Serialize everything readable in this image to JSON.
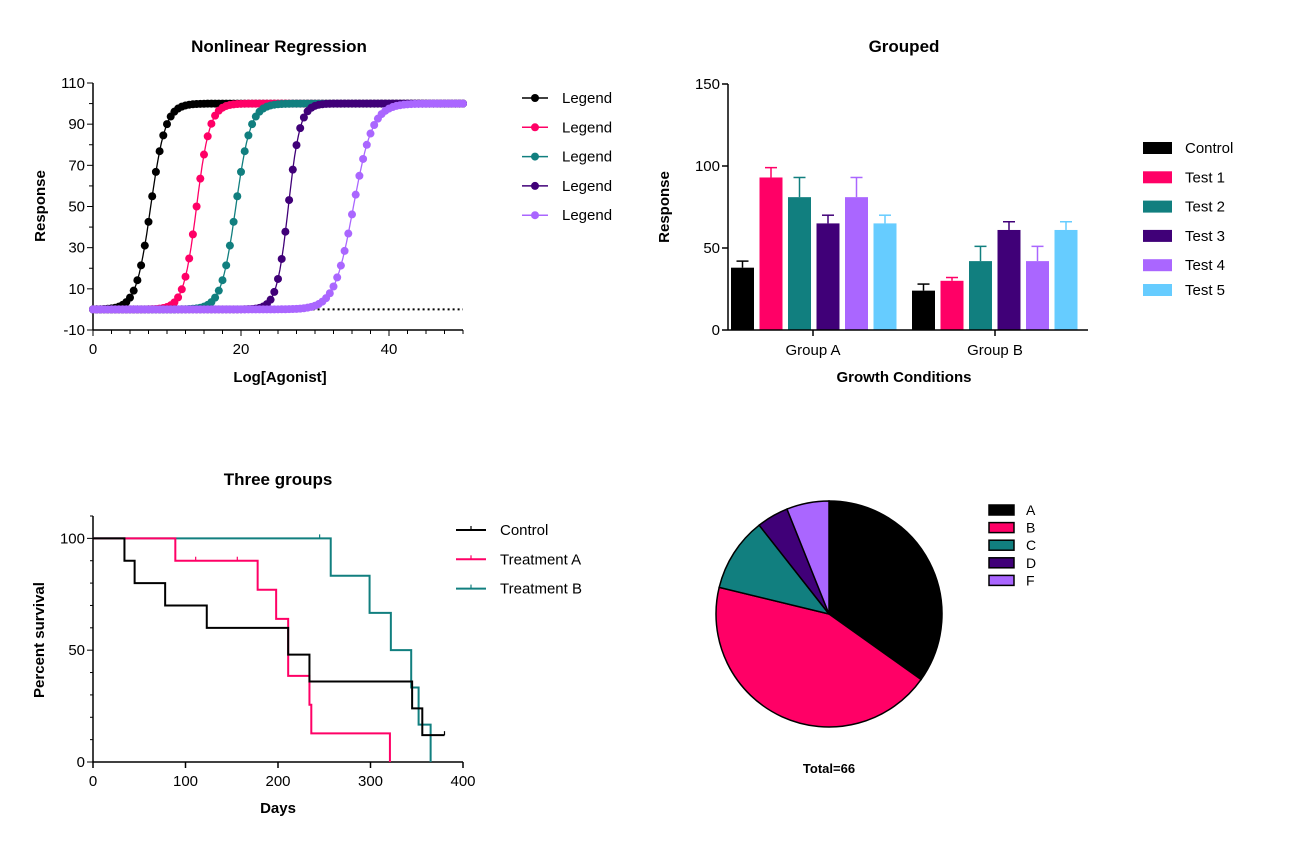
{
  "colors": {
    "black": "#000000",
    "pink": "#FF0066",
    "teal": "#117F7F",
    "purple": "#400078",
    "lavender": "#AA66FF",
    "lightblue": "#66CCFF"
  },
  "chart_data": [
    {
      "type": "scatter",
      "title": "Nonlinear Regression",
      "xlabel": "Log[Agonist]",
      "ylabel": "Response",
      "xlim": [
        0,
        50
      ],
      "ylim": [
        -10,
        110
      ],
      "xticks": [
        "0",
        "20",
        "40"
      ],
      "yticks": [
        "110",
        "90",
        "70",
        "50",
        "30",
        "10",
        "-10"
      ],
      "model": "sigmoidal dose-response: bottom + (top-bottom)/(1+exp((logEC50-x)/slope))",
      "points_x_range": [
        0,
        50
      ],
      "point_spacing": 0.5,
      "baseline_dotted": {
        "y": 0,
        "x_from": 29,
        "x_to": 50
      },
      "legend_position": "right",
      "series": [
        {
          "name": "Legend",
          "color": "#000000",
          "bottom": 0,
          "top": 100,
          "logEC50": 7.8,
          "slope": 1.0
        },
        {
          "name": "Legend",
          "color": "#FF0066",
          "bottom": 0,
          "top": 100,
          "logEC50": 14.0,
          "slope": 0.9
        },
        {
          "name": "Legend",
          "color": "#117F7F",
          "bottom": 0,
          "top": 100,
          "logEC50": 19.3,
          "slope": 1.0
        },
        {
          "name": "Legend",
          "color": "#400078",
          "bottom": 0,
          "top": 100,
          "logEC50": 26.4,
          "slope": 0.8
        },
        {
          "name": "Legend",
          "color": "#AA66FF",
          "bottom": 0,
          "top": 100,
          "logEC50": 35.2,
          "slope": 1.3
        }
      ]
    },
    {
      "type": "bar",
      "title": "Grouped",
      "xlabel": "Growth Conditions",
      "ylabel": "Response",
      "ylim": [
        0,
        150
      ],
      "yticks": [
        "150",
        "100",
        "50",
        "0"
      ],
      "categories": [
        "Group A",
        "Group B"
      ],
      "legend_position": "right",
      "series": [
        {
          "name": "Control",
          "color": "#000000",
          "values": [
            38,
            24
          ],
          "errors": [
            4,
            4
          ]
        },
        {
          "name": "Test 1",
          "color": "#FF0066",
          "values": [
            93,
            30
          ],
          "errors": [
            6,
            2
          ]
        },
        {
          "name": "Test 2",
          "color": "#117F7F",
          "values": [
            81,
            42
          ],
          "errors": [
            12,
            9
          ]
        },
        {
          "name": "Test 3",
          "color": "#400078",
          "values": [
            65,
            61
          ],
          "errors": [
            5,
            5
          ]
        },
        {
          "name": "Test 4",
          "color": "#AA66FF",
          "values": [
            81,
            42
          ],
          "errors": [
            12,
            9
          ]
        },
        {
          "name": "Test 5",
          "color": "#66CCFF",
          "values": [
            65,
            61
          ],
          "errors": [
            5,
            5
          ]
        }
      ]
    },
    {
      "type": "line",
      "subtype": "survival-step",
      "title": "Three groups",
      "xlabel": "Days",
      "ylabel": "Percent survival",
      "xlim": [
        0,
        400
      ],
      "ylim": [
        0,
        110
      ],
      "xticks": [
        "0",
        "100",
        "200",
        "300",
        "400"
      ],
      "yticks": [
        "100",
        "50",
        "0"
      ],
      "legend_position": "right",
      "series": [
        {
          "name": "Control",
          "color": "#000000",
          "steps": [
            [
              0,
              100
            ],
            [
              34,
              90
            ],
            [
              45,
              80
            ],
            [
              78,
              70
            ],
            [
              123,
              60
            ],
            [
              211,
              48
            ],
            [
              234,
              36
            ],
            [
              345,
              24
            ],
            [
              356,
              12
            ],
            [
              380,
              12
            ]
          ],
          "censored": [
            [
              380,
              12
            ]
          ]
        },
        {
          "name": "Treatment A",
          "color": "#FF0066",
          "steps": [
            [
              0,
              100
            ],
            [
              89,
              90
            ],
            [
              178,
              77
            ],
            [
              198,
              64
            ],
            [
              211,
              38.5
            ],
            [
              234,
              25.6
            ],
            [
              236,
              12.8
            ],
            [
              321,
              0
            ]
          ],
          "censored": [
            [
              111,
              90
            ],
            [
              156,
              90
            ]
          ]
        },
        {
          "name": "Treatment B",
          "color": "#117F7F",
          "steps": [
            [
              0,
              100
            ],
            [
              257,
              83.3
            ],
            [
              299,
              66.7
            ],
            [
              322,
              50
            ],
            [
              344,
              33.3
            ],
            [
              352,
              16.7
            ],
            [
              365,
              0
            ]
          ],
          "censored": [
            [
              245,
              100
            ]
          ]
        }
      ]
    },
    {
      "type": "pie",
      "categories": [
        "A",
        "B",
        "C",
        "D",
        "F"
      ],
      "values": [
        23,
        29,
        7,
        3,
        4
      ],
      "colors": [
        "#000000",
        "#FF0066",
        "#117F7F",
        "#400078",
        "#AA66FF"
      ],
      "total_label": "Total=66",
      "legend_position": "right"
    }
  ]
}
